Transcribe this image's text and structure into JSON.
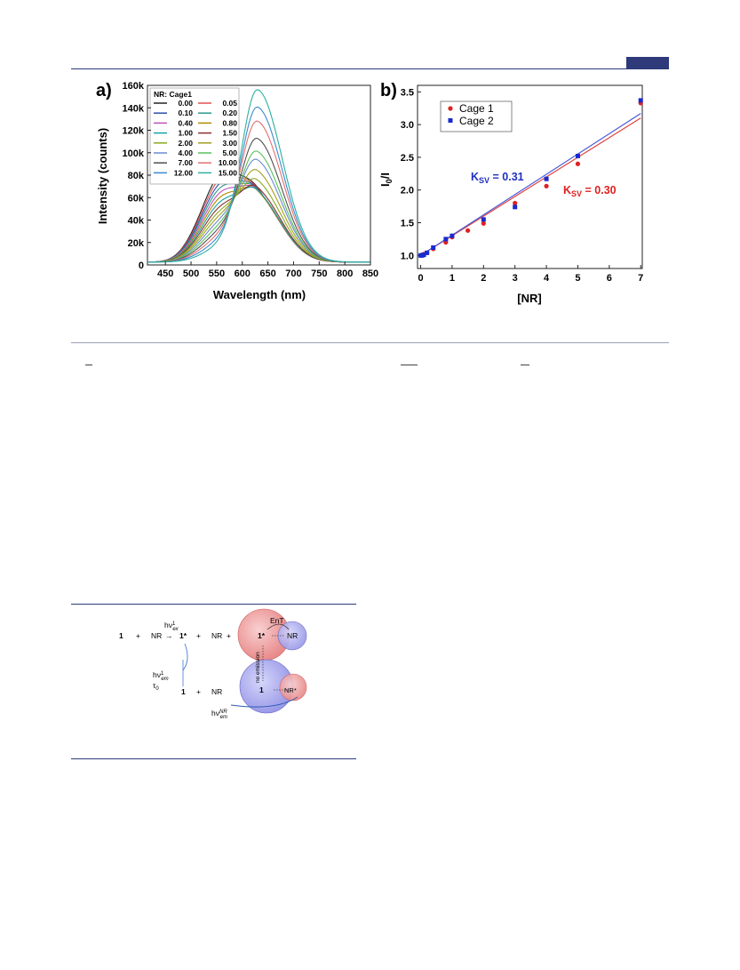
{
  "panel_a": {
    "label": "a)",
    "xlabel": "Wavelength (nm)",
    "ylabel": "Intensity (counts)",
    "xticks": [
      "450",
      "500",
      "550",
      "600",
      "650",
      "700",
      "750",
      "800",
      "850"
    ],
    "yticks": [
      "0",
      "20k",
      "40k",
      "60k",
      "80k",
      "100k",
      "120k",
      "140k",
      "160k"
    ],
    "legend_title": "NR: Cage1",
    "legend": [
      "0.00",
      "0.05",
      "0.10",
      "0.20",
      "0.40",
      "0.80",
      "1.00",
      "1.50",
      "2.00",
      "3.00",
      "4.00",
      "5.00",
      "7.00",
      "10.00",
      "12.00",
      "15.00"
    ],
    "colors": [
      "#222222",
      "#e05050",
      "#2c4fa8",
      "#2a9a8a",
      "#c050c0",
      "#b08a00",
      "#1aa0a0",
      "#8a3030",
      "#8aaa20",
      "#a0a020",
      "#6a8ad0",
      "#5ac05a",
      "#505050",
      "#e07070",
      "#3a8ad0",
      "#2ab0a0"
    ]
  },
  "panel_b": {
    "label": "b)",
    "xlabel": "[NR]",
    "ylabel": "I0/I",
    "xticks": [
      "0",
      "1",
      "2",
      "3",
      "4",
      "5",
      "6",
      "7"
    ],
    "yticks": [
      "1.0",
      "1.5",
      "2.0",
      "2.5",
      "3.0",
      "3.5"
    ],
    "legend": [
      "Cage 1",
      "Cage 2"
    ],
    "ksv_blue": "K",
    "ksv_blue_sub": "SV",
    "ksv_blue_val": " = 0.31",
    "ksv_red": "K",
    "ksv_red_sub": "SV",
    "ksv_red_val": " = 0.30",
    "colors": {
      "cage1": "#e02020",
      "cage2": "#1a2ad0",
      "fit1": "#e04040",
      "fit2": "#4a5ad8"
    }
  },
  "chart_data": [
    {
      "type": "line",
      "title": "",
      "xlabel": "Wavelength (nm)",
      "ylabel": "Intensity (counts)",
      "xlim": [
        415,
        850
      ],
      "ylim": [
        0,
        160000
      ],
      "series": [
        {
          "name": "0.00",
          "peak_nm": 555,
          "peak": 75000
        },
        {
          "name": "0.05",
          "peak_nm": 558,
          "peak": 74000
        },
        {
          "name": "0.10",
          "peak_nm": 560,
          "peak": 73000
        },
        {
          "name": "0.20",
          "peak_nm": 562,
          "peak": 72000
        },
        {
          "name": "0.40",
          "peak_nm": 565,
          "peak": 71000
        },
        {
          "name": "0.80",
          "peak_nm": 570,
          "peak": 70000
        },
        {
          "name": "1.00",
          "peak_nm": 600,
          "peak": 70000
        },
        {
          "name": "1.50",
          "peak_nm": 615,
          "peak": 72000
        },
        {
          "name": "2.00",
          "peak_nm": 622,
          "peak": 78000
        },
        {
          "name": "3.00",
          "peak_nm": 625,
          "peak": 86000
        },
        {
          "name": "4.00",
          "peak_nm": 628,
          "peak": 95000
        },
        {
          "name": "5.00",
          "peak_nm": 629,
          "peak": 102000
        },
        {
          "name": "7.00",
          "peak_nm": 630,
          "peak": 113000
        },
        {
          "name": "10.00",
          "peak_nm": 630,
          "peak": 128000
        },
        {
          "name": "12.00",
          "peak_nm": 630,
          "peak": 140000
        },
        {
          "name": "15.00",
          "peak_nm": 630,
          "peak": 155000
        }
      ]
    },
    {
      "type": "scatter",
      "title": "",
      "xlabel": "[NR]",
      "ylabel": "I0/I",
      "xlim": [
        -0.1,
        7.05
      ],
      "ylim": [
        0.8,
        3.6
      ],
      "series": [
        {
          "name": "Cage 1",
          "x": [
            0,
            0.05,
            0.1,
            0.2,
            0.4,
            0.8,
            1,
            1.5,
            2,
            3,
            4,
            5,
            7
          ],
          "y": [
            1.0,
            1.01,
            1.02,
            1.04,
            1.1,
            1.2,
            1.28,
            1.38,
            1.49,
            1.8,
            2.06,
            2.4,
            3.33
          ]
        },
        {
          "name": "Cage 2",
          "x": [
            0,
            0.05,
            0.1,
            0.2,
            0.4,
            0.8,
            1,
            2,
            3,
            4,
            5,
            7
          ],
          "y": [
            1.0,
            1.0,
            1.01,
            1.04,
            1.12,
            1.25,
            1.3,
            1.55,
            1.74,
            2.17,
            2.52,
            3.37
          ]
        }
      ],
      "fits": [
        {
          "series": "Cage 1",
          "ksv": 0.3
        },
        {
          "series": "Cage 2",
          "ksv": 0.31
        }
      ]
    }
  ],
  "scheme": {
    "one": "1",
    "plus": "+",
    "nr": "NR",
    "arrow": "→",
    "one_star": "1*",
    "nr_star": "NR*",
    "hv": "hν",
    "ex_sup": "1",
    "ex_sub": "ex",
    "em_sup": "1",
    "em_sub": "em",
    "tau": "τ",
    "tau_sub": "0",
    "ent": "EnT",
    "nrem_sup": "NR",
    "nrem_sub": "em",
    "nonemission": "no emission"
  }
}
